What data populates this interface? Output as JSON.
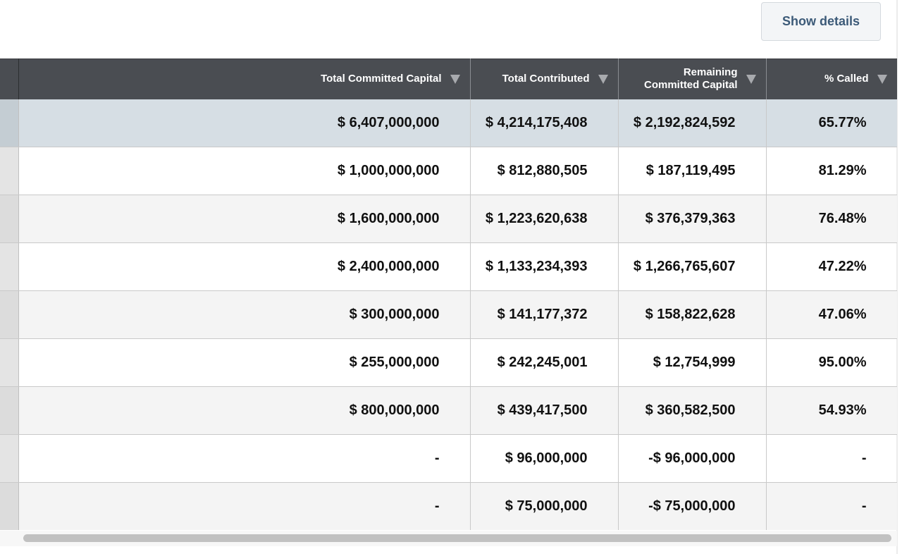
{
  "toolbar": {
    "show_details_label": "Show details"
  },
  "table": {
    "columns": [
      {
        "label": "Total Committed Capital"
      },
      {
        "label": "Total Contributed"
      },
      {
        "label_line1": "Remaining",
        "label_line2": "Committed Capital"
      },
      {
        "label": "% Called"
      }
    ],
    "rows": [
      [
        "$ 6,407,000,000",
        "$ 4,214,175,408",
        "$ 2,192,824,592",
        "65.77%"
      ],
      [
        "$ 1,000,000,000",
        "$ 812,880,505",
        "$ 187,119,495",
        "81.29%"
      ],
      [
        "$ 1,600,000,000",
        "$ 1,223,620,638",
        "$ 376,379,363",
        "76.48%"
      ],
      [
        "$ 2,400,000,000",
        "$ 1,133,234,393",
        "$ 1,266,765,607",
        "47.22%"
      ],
      [
        "$ 300,000,000",
        "$ 141,177,372",
        "$ 158,822,628",
        "47.06%"
      ],
      [
        "$ 255,000,000",
        "$ 242,245,001",
        "$ 12,754,999",
        "95.00%"
      ],
      [
        "$ 800,000,000",
        "$ 439,417,500",
        "$ 360,582,500",
        "54.93%"
      ],
      [
        "-",
        "$ 96,000,000",
        "-$ 96,000,000",
        "-"
      ],
      [
        "-",
        "$ 75,000,000",
        "-$ 75,000,000",
        "-"
      ]
    ],
    "selected_row_index": 0
  },
  "icons": {
    "sort": "sort-down-triangle-icon"
  },
  "colors": {
    "header_bg": "#4a4d52",
    "selected_row_bg": "#d6dee4",
    "button_text": "#3c5a78"
  }
}
